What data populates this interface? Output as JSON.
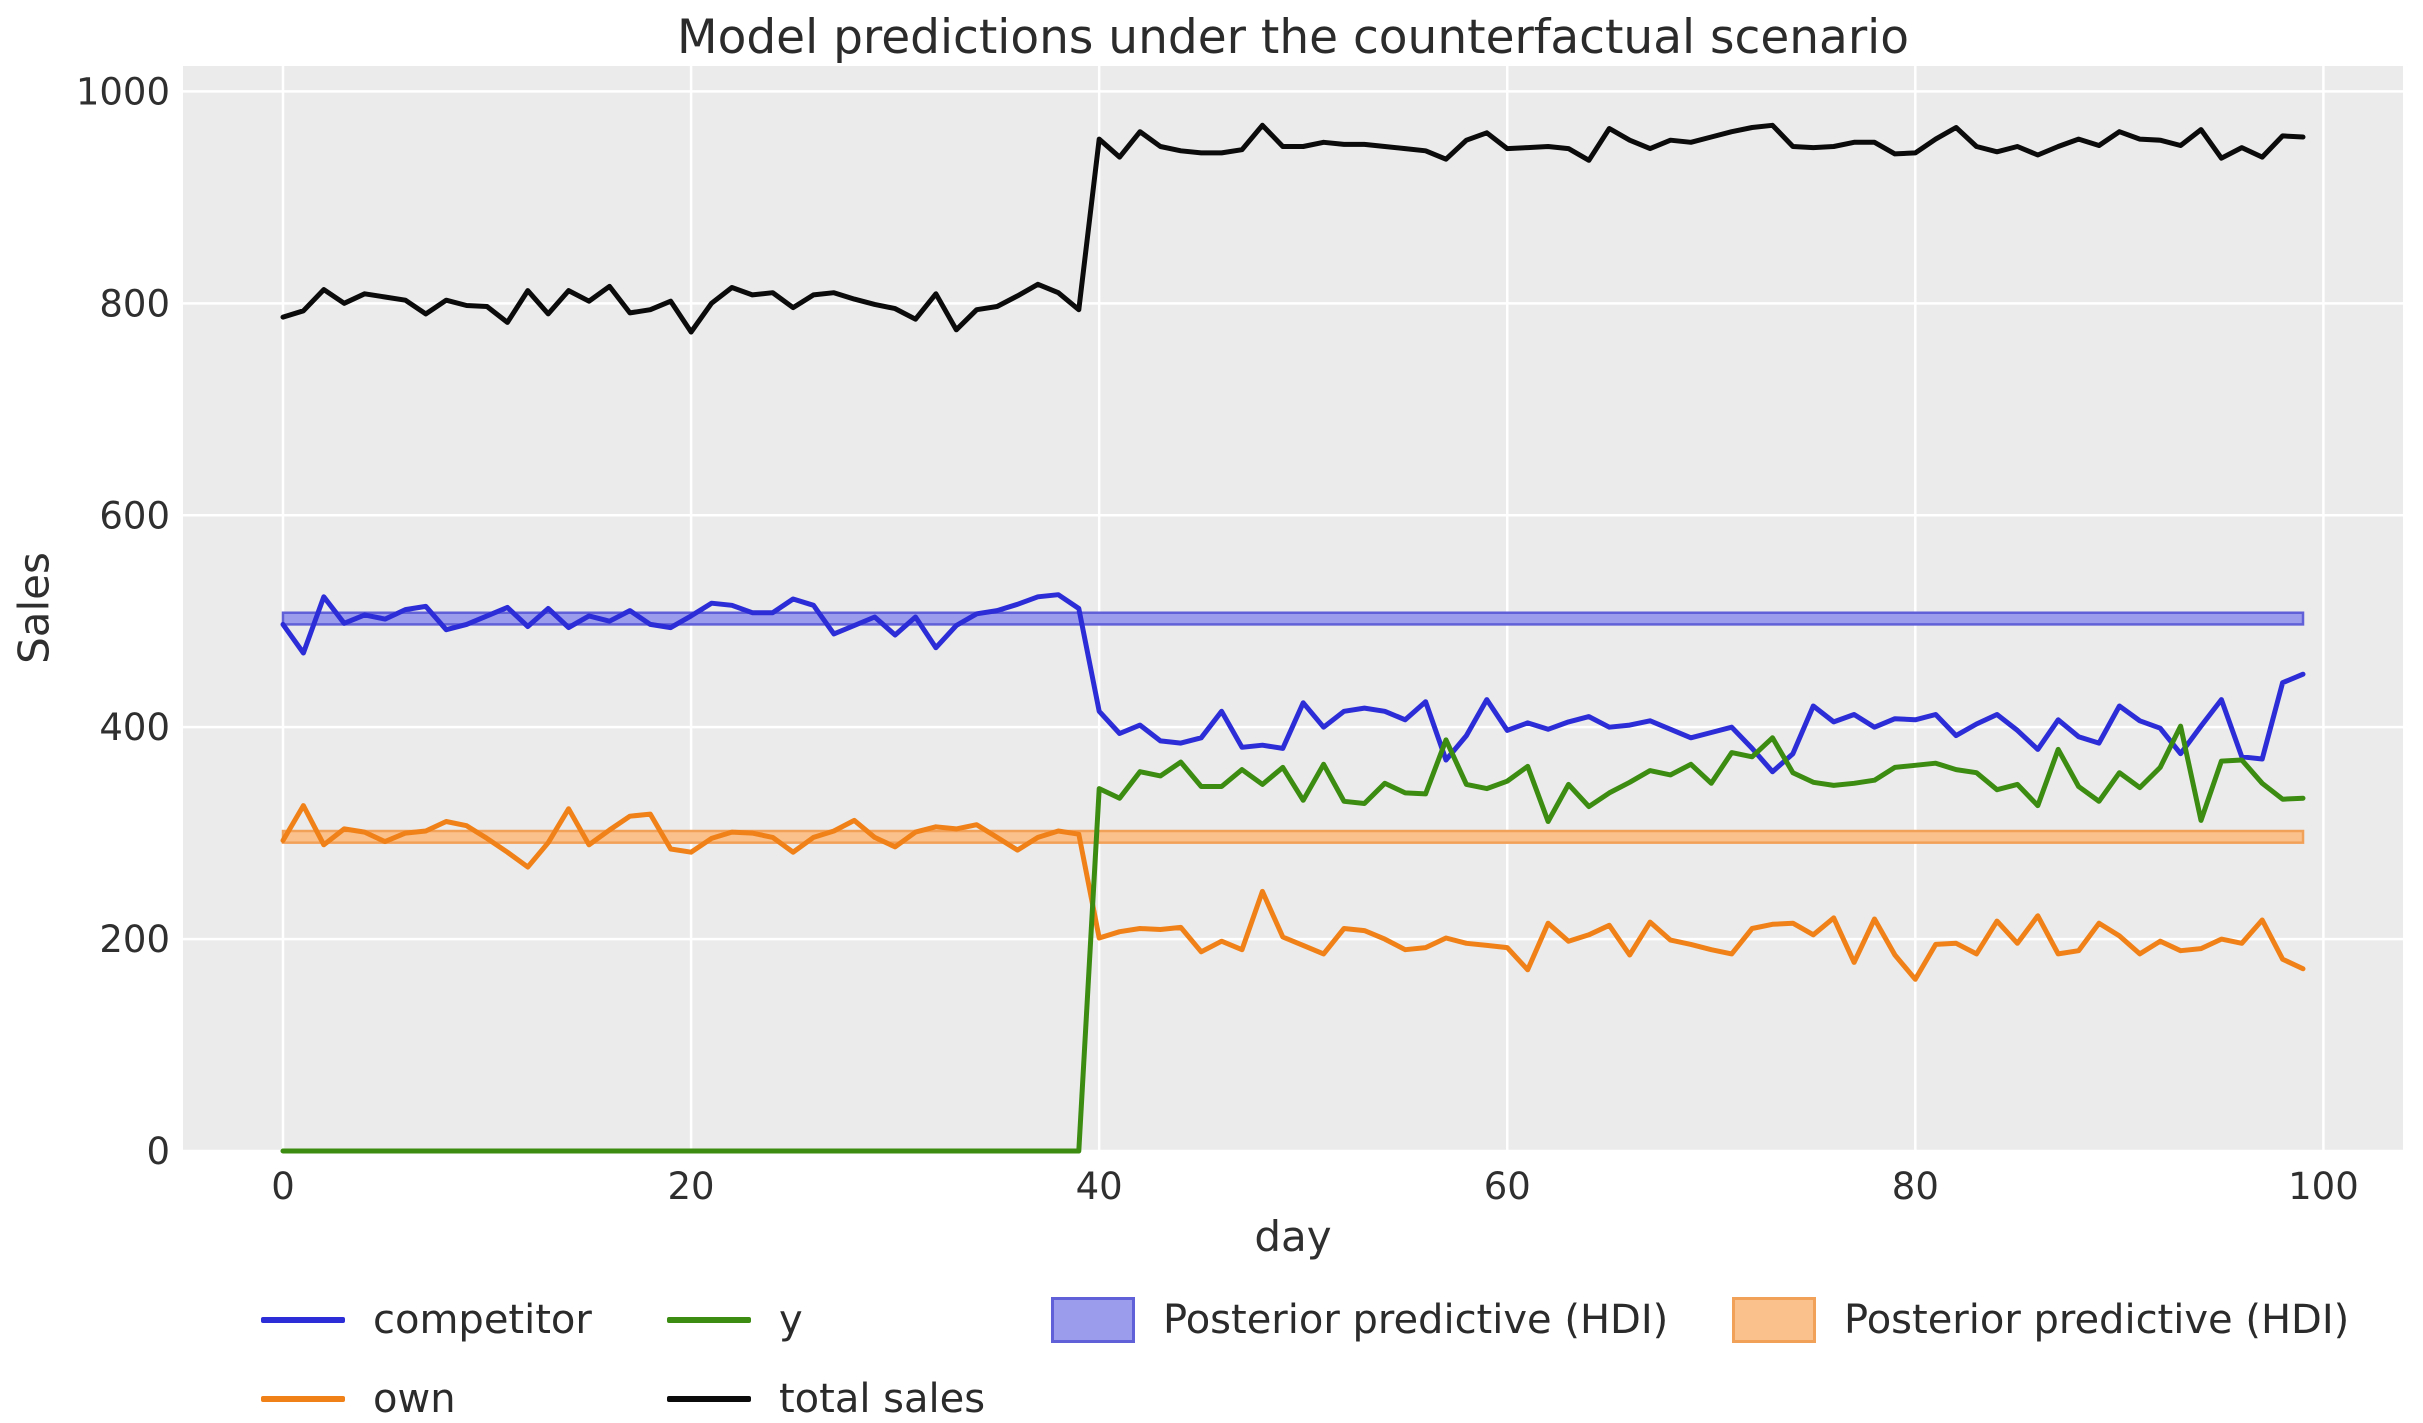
{
  "title": "Model predictions under the counterfactual scenario",
  "chart_data": {
    "type": "line",
    "title": "Model predictions under the counterfactual scenario",
    "xlabel": "day",
    "ylabel": "Sales",
    "xlim": [
      -4.9,
      103.9
    ],
    "ylim": [
      0,
      1024
    ],
    "xticks": [
      0,
      20,
      40,
      60,
      80,
      100
    ],
    "yticks": [
      0,
      200,
      400,
      600,
      800,
      1000
    ],
    "grid": true,
    "grid_color": "#ffffff",
    "plot_bg": "#ebebeb",
    "text_color": "#2f2f2f",
    "legend_position": "bottom",
    "x_start": 0,
    "x_step": 1,
    "series": [
      {
        "name": "competitor",
        "color": "#2d2dd8",
        "values": [
          497,
          470,
          523,
          498,
          506,
          502,
          511,
          514,
          492,
          497,
          505,
          513,
          495,
          512,
          494,
          505,
          500,
          510,
          497,
          494,
          505,
          517,
          515,
          508,
          508,
          521,
          515,
          488,
          496,
          504,
          487,
          504,
          475,
          496,
          507,
          510,
          516,
          523,
          525,
          512,
          415,
          394,
          402,
          387,
          385,
          390,
          415,
          381,
          383,
          380,
          423,
          400,
          415,
          418,
          415,
          407,
          424,
          369,
          392,
          426,
          397,
          404,
          398,
          405,
          410,
          400,
          402,
          406,
          398,
          390,
          395,
          400,
          380,
          358,
          375,
          420,
          405,
          412,
          400,
          408,
          407,
          412,
          392,
          403,
          412,
          397,
          379,
          407,
          391,
          385,
          420,
          406,
          399,
          375,
          401,
          426,
          372,
          370,
          442,
          450
        ]
      },
      {
        "name": "own",
        "color": "#f08119",
        "values": [
          293,
          326,
          289,
          304,
          301,
          292,
          300,
          302,
          311,
          307,
          295,
          282,
          268,
          291,
          323,
          289,
          303,
          316,
          318,
          285,
          282,
          295,
          301,
          300,
          296,
          282,
          296,
          302,
          312,
          296,
          287,
          301,
          306,
          304,
          308,
          296,
          284,
          296,
          302,
          299,
          201,
          207,
          210,
          209,
          211,
          188,
          198,
          190,
          245,
          202,
          194,
          186,
          210,
          208,
          200,
          190,
          192,
          201,
          196,
          194,
          192,
          171,
          215,
          198,
          204,
          213,
          185,
          216,
          199,
          195,
          190,
          186,
          210,
          214,
          215,
          204,
          220,
          178,
          219,
          185,
          162,
          195,
          196,
          186,
          217,
          196,
          222,
          186,
          189,
          215,
          203,
          186,
          198,
          189,
          191,
          200,
          196,
          218,
          181,
          172
        ]
      },
      {
        "name": "y",
        "color": "#3c8c12",
        "values": [
          0,
          0,
          0,
          0,
          0,
          0,
          0,
          0,
          0,
          0,
          0,
          0,
          0,
          0,
          0,
          0,
          0,
          0,
          0,
          0,
          0,
          0,
          0,
          0,
          0,
          0,
          0,
          0,
          0,
          0,
          0,
          0,
          0,
          0,
          0,
          0,
          0,
          0,
          0,
          0,
          342,
          333,
          358,
          354,
          367,
          344,
          344,
          360,
          346,
          362,
          331,
          365,
          330,
          328,
          347,
          338,
          337,
          388,
          346,
          342,
          349,
          363,
          311,
          346,
          325,
          338,
          348,
          359,
          355,
          365,
          347,
          376,
          372,
          390,
          357,
          348,
          345,
          347,
          350,
          362,
          364,
          366,
          360,
          357,
          341,
          346,
          326,
          379,
          344,
          330,
          357,
          343,
          362,
          401,
          312,
          368,
          369,
          347,
          332,
          333
        ]
      },
      {
        "name": "total sales",
        "color": "#0b0b0b",
        "values": [
          787,
          793,
          813,
          800,
          809,
          806,
          803,
          790,
          803,
          798,
          797,
          782,
          812,
          790,
          812,
          802,
          816,
          791,
          794,
          802,
          773,
          800,
          815,
          808,
          810,
          796,
          808,
          810,
          804,
          799,
          795,
          785,
          809,
          775,
          794,
          797,
          807,
          818,
          810,
          794,
          955,
          938,
          962,
          948,
          944,
          942,
          942,
          945,
          968,
          948,
          948,
          952,
          950,
          950,
          948,
          946,
          944,
          936,
          954,
          961,
          946,
          947,
          948,
          946,
          935,
          965,
          954,
          946,
          954,
          952,
          957,
          962,
          966,
          968,
          948,
          947,
          948,
          952,
          952,
          941,
          942,
          955,
          966,
          948,
          943,
          948,
          940,
          948,
          955,
          949,
          962,
          955,
          954,
          949,
          964,
          937,
          947,
          938,
          958,
          957
        ]
      }
    ],
    "bands": [
      {
        "name": "Posterior predictive (HDI)",
        "fill": "#9c9cec",
        "edge": "#6060d8",
        "lo": 497,
        "hi": 508,
        "x_start": 0,
        "x_end": 99
      },
      {
        "name": "Posterior predictive (HDI)",
        "fill": "#fac18c",
        "edge": "#f2a159",
        "lo": 291,
        "hi": 302,
        "x_start": 0,
        "x_end": 99
      }
    ]
  },
  "legend": {
    "items": [
      {
        "label": "competitor",
        "kind": "line",
        "color": "#2d2dd8"
      },
      {
        "label": "own",
        "kind": "line",
        "color": "#f08119"
      },
      {
        "label": "y",
        "kind": "line",
        "color": "#3c8c12"
      },
      {
        "label": "total sales",
        "kind": "line",
        "color": "#0b0b0b"
      },
      {
        "label": "Posterior predictive (HDI)",
        "kind": "patch",
        "fill": "#9c9cec",
        "edge": "#6060d8"
      },
      {
        "label": "Posterior predictive (HDI)",
        "kind": "patch",
        "fill": "#fac18c",
        "edge": "#f2a159"
      }
    ]
  }
}
